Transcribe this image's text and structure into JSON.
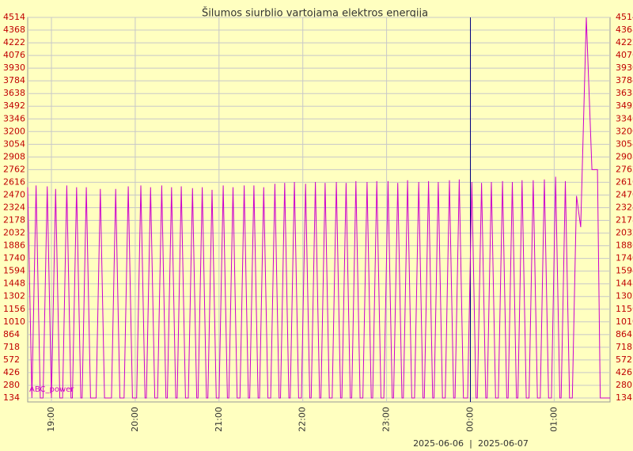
{
  "chart_data": {
    "type": "line",
    "title": "Šilumos siurblio vartojama elektros energija",
    "dates": [
      "2025-06-06",
      "2025-06-07"
    ],
    "xlim": [
      1123,
      1540
    ],
    "xticks": [
      {
        "value": 1140,
        "label": "19:00"
      },
      {
        "value": 1200,
        "label": "20:00"
      },
      {
        "value": 1260,
        "label": "21:00"
      },
      {
        "value": 1320,
        "label": "22:00"
      },
      {
        "value": 1380,
        "label": "23:00"
      },
      {
        "value": 1440,
        "label": "00:00"
      },
      {
        "value": 1500,
        "label": "01:00"
      }
    ],
    "ylim": [
      134,
      4514
    ],
    "yticks": [
      134,
      280,
      426,
      572,
      718,
      864,
      1010,
      1156,
      1302,
      1448,
      1594,
      1740,
      1886,
      2032,
      2178,
      2324,
      2470,
      2616,
      2762,
      2908,
      3054,
      3200,
      3346,
      3492,
      3638,
      3784,
      3930,
      4076,
      4222,
      4368,
      4514
    ],
    "grid": true,
    "x": [
      1123,
      1126,
      1129,
      1132,
      1134,
      1137,
      1140,
      1140,
      1143,
      1146,
      1148,
      1151,
      1154,
      1155,
      1158,
      1161,
      1162,
      1165,
      1168,
      1172,
      1175,
      1178,
      1183,
      1186,
      1189,
      1192,
      1195,
      1198,
      1201,
      1204,
      1207,
      1208,
      1211,
      1214,
      1216,
      1219,
      1222,
      1223,
      1226,
      1229,
      1230,
      1233,
      1236,
      1238,
      1241,
      1244,
      1245,
      1248,
      1251,
      1252,
      1255,
      1258,
      1260,
      1263,
      1266,
      1267,
      1270,
      1273,
      1275,
      1278,
      1281,
      1282,
      1285,
      1288,
      1289,
      1292,
      1295,
      1297,
      1300,
      1303,
      1304,
      1307,
      1310,
      1311,
      1314,
      1317,
      1319,
      1322,
      1325,
      1326,
      1329,
      1332,
      1333,
      1336,
      1339,
      1341,
      1344,
      1347,
      1348,
      1351,
      1354,
      1355,
      1358,
      1361,
      1363,
      1366,
      1369,
      1370,
      1373,
      1376,
      1378,
      1381,
      1384,
      1385,
      1388,
      1391,
      1392,
      1395,
      1398,
      1400,
      1403,
      1406,
      1407,
      1410,
      1413,
      1414,
      1417,
      1420,
      1422,
      1425,
      1428,
      1429,
      1432,
      1435,
      1438,
      1441,
      1444,
      1445,
      1448,
      1451,
      1452,
      1455,
      1458,
      1460,
      1463,
      1466,
      1467,
      1470,
      1473,
      1474,
      1477,
      1480,
      1482,
      1485,
      1488,
      1490,
      1493,
      1496,
      1498,
      1501,
      1504,
      1505,
      1508,
      1511,
      1513,
      1516,
      1519,
      1523,
      1527,
      1531,
      1533,
      1540
    ],
    "series": [
      {
        "name": "ABC_power",
        "color": "#cc00cc",
        "values": [
          2560,
          134,
          2580,
          134,
          134,
          2570,
          134,
          134,
          2540,
          134,
          134,
          2580,
          134,
          134,
          2560,
          134,
          134,
          2560,
          134,
          134,
          2540,
          134,
          134,
          2540,
          134,
          134,
          2570,
          134,
          134,
          2580,
          134,
          134,
          2560,
          134,
          134,
          2580,
          134,
          134,
          2560,
          134,
          134,
          2570,
          134,
          134,
          2550,
          134,
          134,
          2560,
          134,
          134,
          2530,
          134,
          134,
          2580,
          134,
          134,
          2560,
          134,
          134,
          2580,
          134,
          134,
          2580,
          134,
          134,
          2560,
          134,
          134,
          2600,
          134,
          134,
          2610,
          134,
          134,
          2620,
          134,
          134,
          2600,
          134,
          134,
          2620,
          134,
          134,
          2610,
          134,
          134,
          2620,
          134,
          134,
          2610,
          134,
          134,
          2630,
          134,
          134,
          2620,
          134,
          134,
          2630,
          134,
          134,
          2630,
          134,
          134,
          2610,
          134,
          134,
          2640,
          134,
          134,
          2620,
          134,
          134,
          2630,
          134,
          134,
          2620,
          134,
          134,
          2640,
          134,
          134,
          2650,
          134,
          134,
          2620,
          134,
          134,
          2610,
          134,
          134,
          2620,
          134,
          134,
          2630,
          134,
          134,
          2620,
          134,
          134,
          2640,
          134,
          134,
          2640,
          134,
          134,
          2650,
          134,
          134,
          2680,
          134,
          134,
          2630,
          134,
          134,
          2460,
          2100,
          4514,
          2762,
          2762,
          134,
          134
        ]
      }
    ]
  }
}
